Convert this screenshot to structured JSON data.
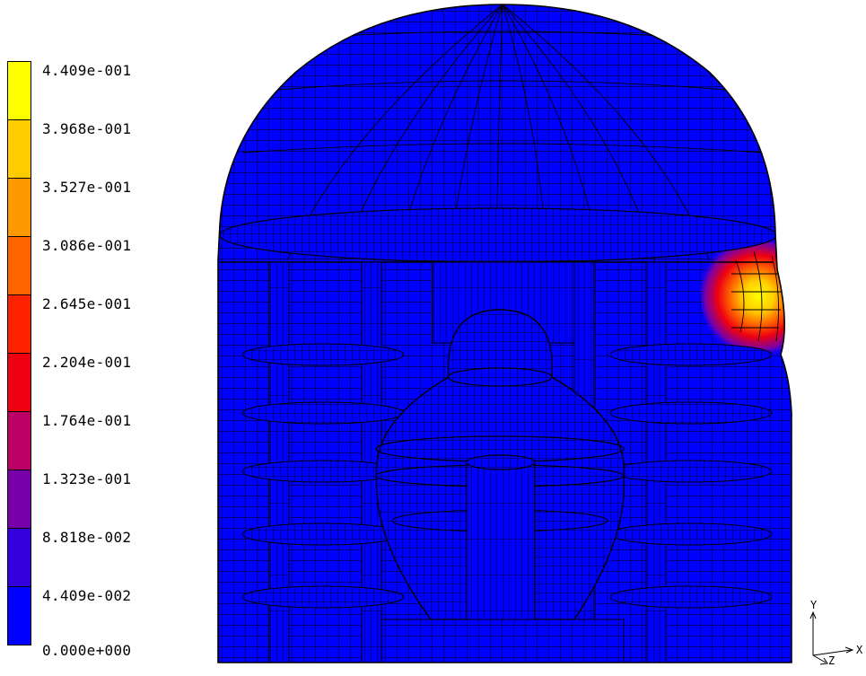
{
  "legend": {
    "labels": [
      "4.409e-001",
      "3.968e-001",
      "3.527e-001",
      "3.086e-001",
      "2.645e-001",
      "2.204e-001",
      "1.764e-001",
      "1.323e-001",
      "8.818e-002",
      "4.409e-002",
      "0.000e+000"
    ],
    "colors": [
      "#ffff00",
      "#ffcc00",
      "#ff9900",
      "#ff6600",
      "#ff2200",
      "#ee0011",
      "#bb0066",
      "#7700aa",
      "#3300dd",
      "#0000ff"
    ]
  },
  "model": {
    "mesh_color": "#0000ff",
    "line_color": "#000000"
  },
  "triad": {
    "y": "Y",
    "z": "Z",
    "x": "X"
  }
}
